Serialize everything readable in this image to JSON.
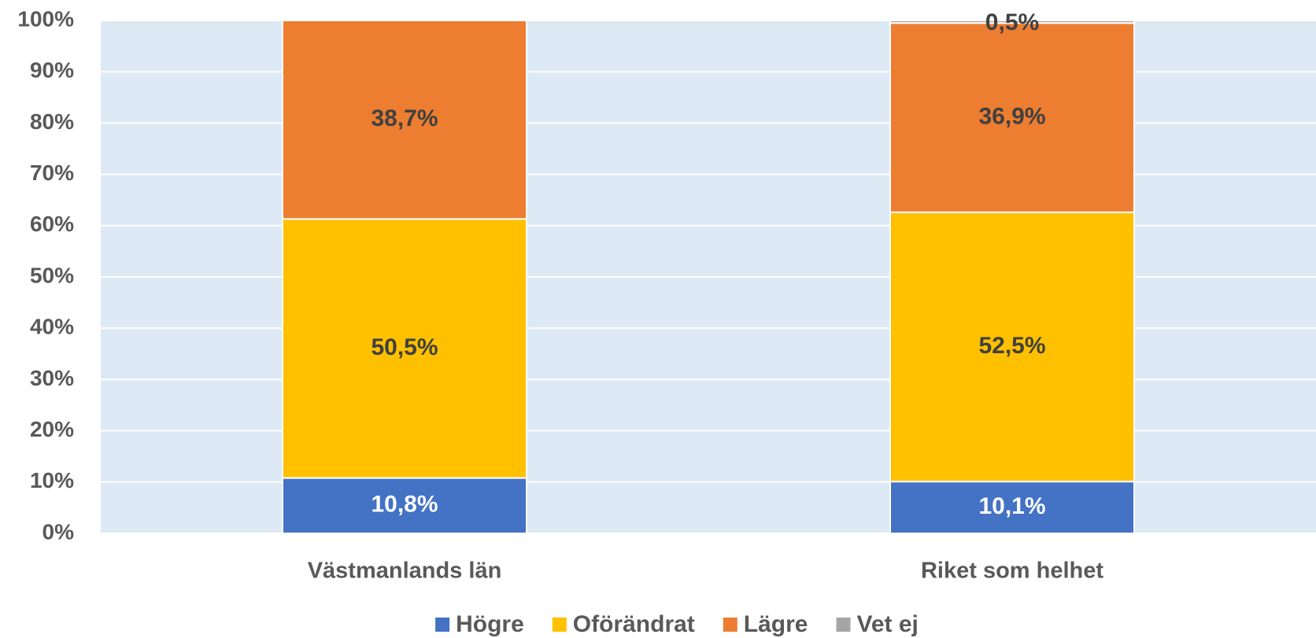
{
  "chart_data": {
    "type": "stacked_bar",
    "categories": [
      "Västmanlands län",
      "Riket som helhet"
    ],
    "series": [
      {
        "name": "Högre",
        "color": "#4472c4",
        "label_color": "#ffffff",
        "values": [
          10.8,
          10.1
        ],
        "value_labels": [
          "10,8%",
          "10,1%"
        ]
      },
      {
        "name": "Oförändrat",
        "color": "#ffc000",
        "label_color": "#404040",
        "values": [
          50.5,
          52.5
        ],
        "value_labels": [
          "50,5%",
          "52,5%"
        ]
      },
      {
        "name": "Lägre",
        "color": "#ed7d31",
        "label_color": "#404040",
        "values": [
          38.7,
          36.9
        ],
        "value_labels": [
          "38,7%",
          "36,9%"
        ]
      },
      {
        "name": "Vet ej",
        "color": "#a5a5a5",
        "label_color": "#404040",
        "values": [
          0,
          0.5
        ],
        "value_labels": [
          null,
          "0,5%"
        ]
      }
    ],
    "ylim": [
      0,
      100
    ],
    "yticks": [
      {
        "value": 0,
        "label": "0%"
      },
      {
        "value": 10,
        "label": "10%"
      },
      {
        "value": 20,
        "label": "20%"
      },
      {
        "value": 30,
        "label": "30%"
      },
      {
        "value": 40,
        "label": "40%"
      },
      {
        "value": 50,
        "label": "50%"
      },
      {
        "value": 60,
        "label": "60%"
      },
      {
        "value": 70,
        "label": "70%"
      },
      {
        "value": 80,
        "label": "80%"
      },
      {
        "value": 90,
        "label": "90%"
      },
      {
        "value": 100,
        "label": "100%"
      }
    ],
    "grid": true,
    "plot_background": "#dde9f5",
    "legend": "bottom"
  }
}
